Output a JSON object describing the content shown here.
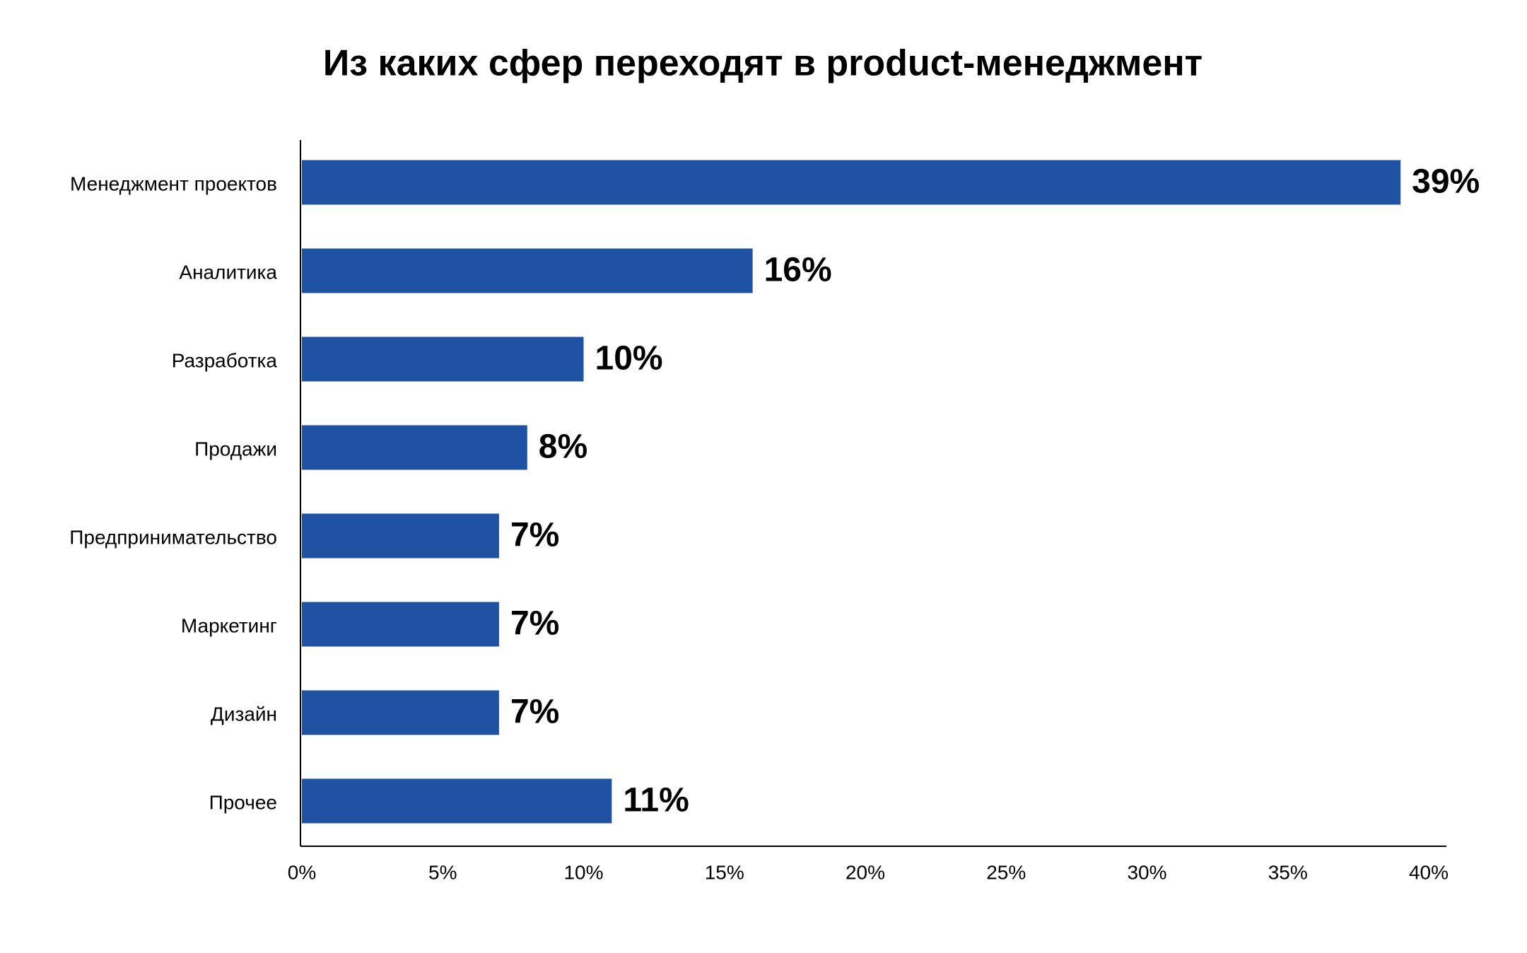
{
  "chart_data": {
    "type": "hbar",
    "title": "Из каких сфер переходят в product-менеджмент",
    "categories": [
      "Менеджмент проектов",
      "Аналитика",
      "Разработка",
      "Продажи",
      "Предпринимательство",
      "Маркетинг",
      "Дизайн",
      "Прочее"
    ],
    "values": [
      39,
      16,
      10,
      8,
      7,
      7,
      7,
      11
    ],
    "value_labels": [
      "39%",
      "16%",
      "10%",
      "8%",
      "7%",
      "7%",
      "7%",
      "11%"
    ],
    "color": "#1f52a3",
    "xlim": [
      0,
      40
    ],
    "xticks": [
      {
        "value": 0,
        "label": "0%"
      },
      {
        "value": 5,
        "label": "5%"
      },
      {
        "value": 10,
        "label": "10%"
      },
      {
        "value": 15,
        "label": "15%"
      },
      {
        "value": 20,
        "label": "20%"
      },
      {
        "value": 25,
        "label": "25%"
      },
      {
        "value": 30,
        "label": "30%"
      },
      {
        "value": 35,
        "label": "35%"
      },
      {
        "value": 40,
        "label": "40%"
      }
    ],
    "grid": false
  }
}
